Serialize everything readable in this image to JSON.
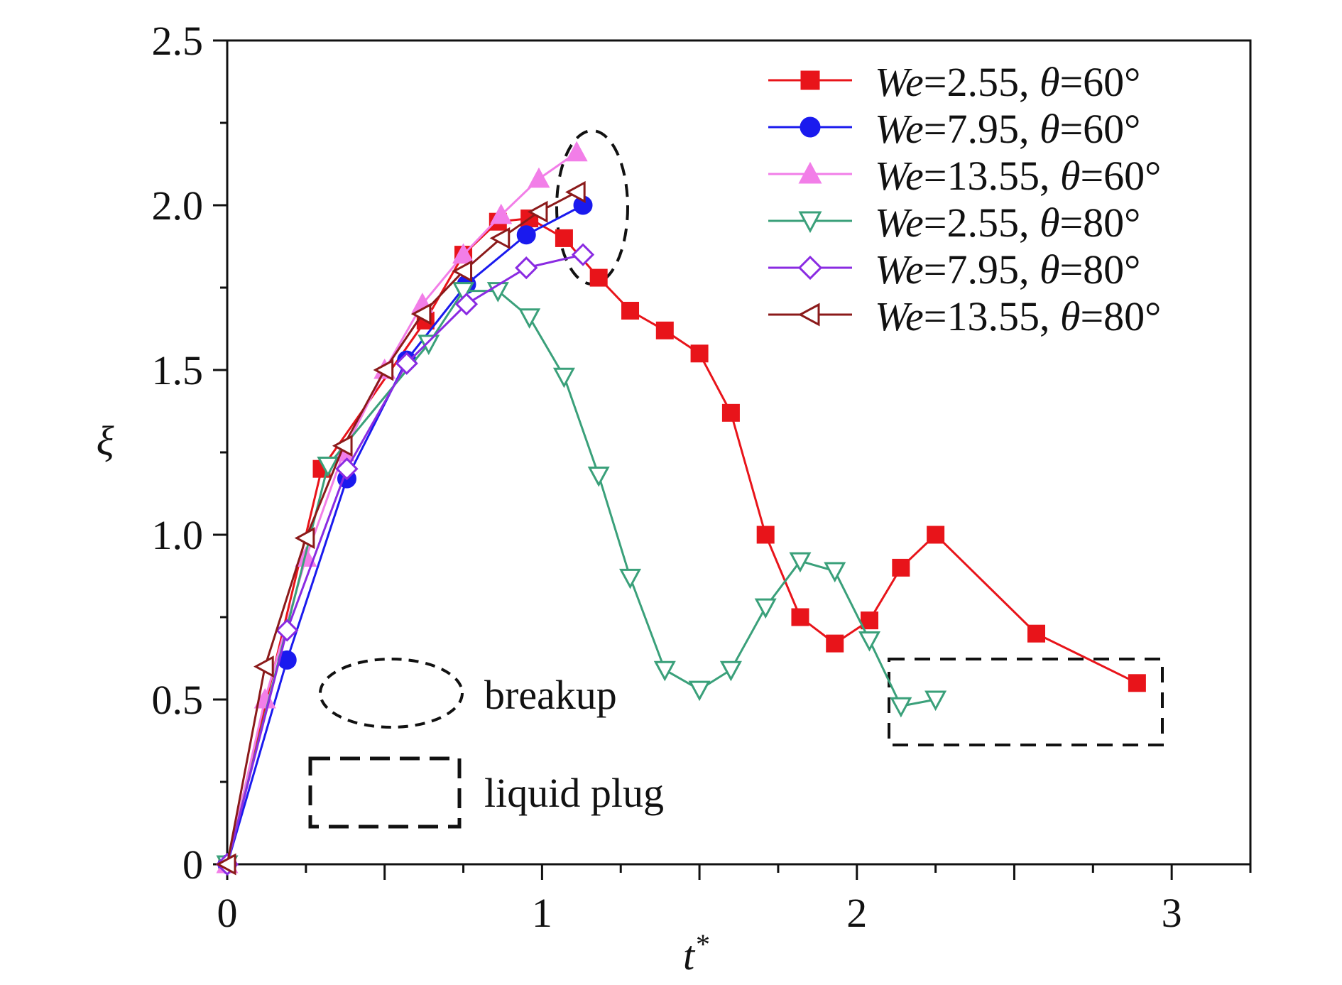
{
  "chart_data": {
    "type": "line",
    "xlabel": "t*",
    "ylabel": "ξ",
    "xlim": [
      0,
      3.25
    ],
    "ylim": [
      0,
      2.5
    ],
    "xticks": [
      {
        "value": 0,
        "label": "0"
      },
      {
        "value": 1,
        "label": "1"
      },
      {
        "value": 2,
        "label": "2"
      },
      {
        "value": 3,
        "label": "3"
      }
    ],
    "yticks": [
      {
        "value": 0,
        "label": "0"
      },
      {
        "value": 0.5,
        "label": "0.5"
      },
      {
        "value": 1.0,
        "label": "1.0"
      },
      {
        "value": 1.5,
        "label": "1.5"
      },
      {
        "value": 2.0,
        "label": "2.0"
      },
      {
        "value": 2.5,
        "label": "2.5"
      }
    ],
    "grid": false,
    "legend_position": "top-right",
    "series": [
      {
        "name": "We=2.55, θ=60°",
        "color": "#e8141a",
        "marker": "square-filled",
        "points": [
          [
            0,
            0
          ],
          [
            0.3,
            1.2
          ],
          [
            0.63,
            1.65
          ],
          [
            0.75,
            1.85
          ],
          [
            0.86,
            1.95
          ],
          [
            0.96,
            1.96
          ],
          [
            1.07,
            1.9
          ],
          [
            1.18,
            1.78
          ],
          [
            1.28,
            1.68
          ],
          [
            1.39,
            1.62
          ],
          [
            1.5,
            1.55
          ],
          [
            1.6,
            1.37
          ],
          [
            1.71,
            1.0
          ],
          [
            1.82,
            0.75
          ],
          [
            1.93,
            0.67
          ],
          [
            2.04,
            0.74
          ],
          [
            2.14,
            0.9
          ],
          [
            2.25,
            1.0
          ],
          [
            2.57,
            0.7
          ],
          [
            2.89,
            0.55
          ]
        ]
      },
      {
        "name": "We=7.95, θ=60°",
        "color": "#1a1aee",
        "marker": "circle-filled",
        "points": [
          [
            0,
            0
          ],
          [
            0.19,
            0.62
          ],
          [
            0.38,
            1.17
          ],
          [
            0.57,
            1.53
          ],
          [
            0.76,
            1.76
          ],
          [
            0.95,
            1.91
          ],
          [
            1.13,
            2.0
          ]
        ]
      },
      {
        "name": "We=13.55, θ=60°",
        "color": "#f27ee8",
        "marker": "triangle-up-filled",
        "points": [
          [
            0,
            0
          ],
          [
            0.12,
            0.5
          ],
          [
            0.25,
            0.93
          ],
          [
            0.37,
            1.25
          ],
          [
            0.5,
            1.5
          ],
          [
            0.62,
            1.7
          ],
          [
            0.75,
            1.85
          ],
          [
            0.87,
            1.97
          ],
          [
            0.99,
            2.08
          ],
          [
            1.11,
            2.16
          ]
        ]
      },
      {
        "name": "We=2.55, θ=80°",
        "color": "#3aa07a",
        "marker": "triangle-down-open",
        "points": [
          [
            0,
            0
          ],
          [
            0.32,
            1.21
          ],
          [
            0.64,
            1.58
          ],
          [
            0.75,
            1.74
          ],
          [
            0.86,
            1.74
          ],
          [
            0.96,
            1.66
          ],
          [
            1.07,
            1.48
          ],
          [
            1.18,
            1.18
          ],
          [
            1.28,
            0.87
          ],
          [
            1.39,
            0.59
          ],
          [
            1.5,
            0.53
          ],
          [
            1.6,
            0.59
          ],
          [
            1.71,
            0.78
          ],
          [
            1.82,
            0.92
          ],
          [
            1.93,
            0.89
          ],
          [
            2.04,
            0.68
          ],
          [
            2.14,
            0.48
          ],
          [
            2.25,
            0.5
          ]
        ]
      },
      {
        "name": "We=7.95, θ=80°",
        "color": "#8a2be2",
        "marker": "diamond-open",
        "points": [
          [
            0,
            0
          ],
          [
            0.19,
            0.71
          ],
          [
            0.38,
            1.2
          ],
          [
            0.57,
            1.52
          ],
          [
            0.76,
            1.7
          ],
          [
            0.95,
            1.81
          ],
          [
            1.13,
            1.85
          ]
        ]
      },
      {
        "name": "We=13.55, θ=80°",
        "color": "#8b1a1a",
        "marker": "triangle-left-open",
        "points": [
          [
            0,
            0
          ],
          [
            0.12,
            0.6
          ],
          [
            0.25,
            0.99
          ],
          [
            0.37,
            1.27
          ],
          [
            0.5,
            1.5
          ],
          [
            0.62,
            1.67
          ],
          [
            0.75,
            1.8
          ],
          [
            0.87,
            1.9
          ],
          [
            0.99,
            1.98
          ],
          [
            1.11,
            2.04
          ]
        ]
      }
    ],
    "annotations": [
      {
        "label": "breakup",
        "style": "dashed-ellipse"
      },
      {
        "label": "liquid plug",
        "style": "dashed-rectangle"
      }
    ]
  },
  "legend": {
    "entries": [
      {
        "we": "We",
        "eq1": "=2.55, ",
        "theta": "θ",
        "eq2": "=60°"
      },
      {
        "we": "We",
        "eq1": "=7.95, ",
        "theta": "θ",
        "eq2": "=60°"
      },
      {
        "we": "We",
        "eq1": "=13.55, ",
        "theta": "θ",
        "eq2": "=60°"
      },
      {
        "we": "We",
        "eq1": "=2.55, ",
        "theta": "θ",
        "eq2": "=80°"
      },
      {
        "we": "We",
        "eq1": "=7.95, ",
        "theta": "θ",
        "eq2": "=80°"
      },
      {
        "we": "We",
        "eq1": "=13.55, ",
        "theta": "θ",
        "eq2": "=80°"
      }
    ]
  },
  "axis_titles": {
    "x_main": "t",
    "x_sup": "*",
    "y": "ξ"
  }
}
